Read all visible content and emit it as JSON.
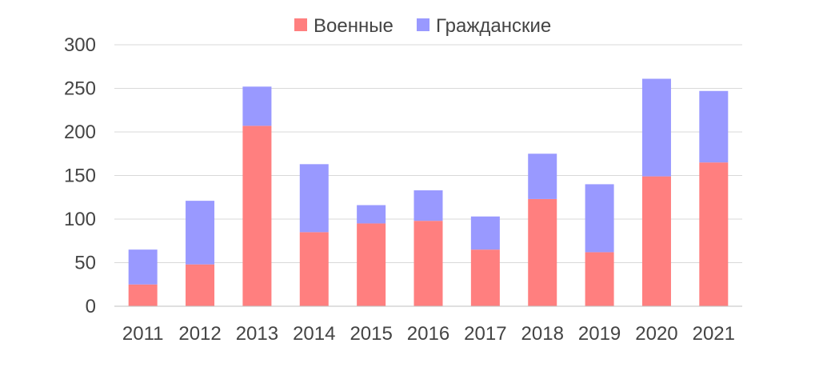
{
  "chart_data": {
    "type": "bar",
    "stacked": true,
    "categories": [
      "2011",
      "2012",
      "2013",
      "2014",
      "2015",
      "2016",
      "2017",
      "2018",
      "2019",
      "2020",
      "2021"
    ],
    "series": [
      {
        "name": "Военные",
        "color": "#ff7f7f",
        "values": [
          25,
          48,
          207,
          85,
          95,
          98,
          65,
          123,
          62,
          149,
          165
        ]
      },
      {
        "name": "Гражданские",
        "color": "#9999ff",
        "values": [
          40,
          73,
          45,
          78,
          21,
          35,
          38,
          52,
          78,
          112,
          82
        ]
      }
    ],
    "yticks": [
      "0",
      "50",
      "100",
      "150",
      "200",
      "250",
      "300"
    ],
    "ylim": [
      0,
      300
    ],
    "grid": true,
    "legend_position": "top-center",
    "gridline_color": "#d9d9d9",
    "axis_color": "#bfbfbf"
  }
}
